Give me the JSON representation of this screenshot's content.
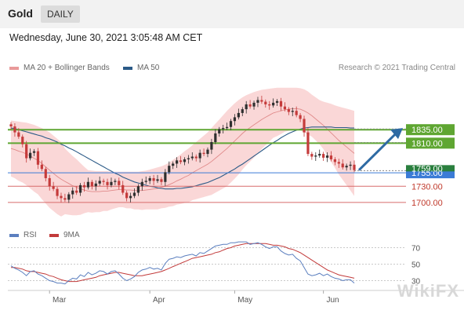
{
  "header": {
    "title": "Gold",
    "timeframe": "DAILY"
  },
  "timestamp": "Wednesday, June 30, 2021 3:05:48 AM CET",
  "credit": "Research © 2021 Trading Central",
  "watermark": "WikiFX",
  "colors": {
    "bollinger_band": "#f8c9c9",
    "ma20": "#e08a8a",
    "ma50": "#2b5a87",
    "resistance": "#5fa632",
    "support": "#d86b6b",
    "current": "#3b7bd6",
    "candle_up": "#2f2f2f",
    "candle_down": "#c53b3b",
    "rsi": "#5b7fbf",
    "rsi_ma": "#c23a3a",
    "arrow": "#2e6aa3"
  },
  "chart_data": [
    {
      "type": "candlestick",
      "legend": [
        "MA 20 + Bollinger Bands",
        "MA 50"
      ],
      "x_tick_labels": [
        "Mar",
        "Apr",
        "May",
        "Jun"
      ],
      "price_levels": [
        {
          "label": "1835.00",
          "value": 1835,
          "kind": "resistance"
        },
        {
          "label": "1810.00",
          "value": 1810,
          "kind": "resistance"
        },
        {
          "label": "1755.00",
          "value": 1755,
          "kind": "pivot"
        },
        {
          "label": "1730.00",
          "value": 1730,
          "kind": "support"
        },
        {
          "label": "1700.00",
          "value": 1700,
          "kind": "support"
        }
      ],
      "current_price_label": "1759.00",
      "current_price": 1759,
      "ylim": [
        1675,
        1930
      ],
      "close": [
        1841,
        1830,
        1822,
        1808,
        1782,
        1792,
        1795,
        1770,
        1762,
        1745,
        1730,
        1725,
        1712,
        1708,
        1705,
        1715,
        1722,
        1718,
        1732,
        1728,
        1738,
        1730,
        1735,
        1740,
        1738,
        1732,
        1738,
        1740,
        1732,
        1718,
        1708,
        1712,
        1718,
        1730,
        1738,
        1740,
        1745,
        1740,
        1743,
        1738,
        1756,
        1768,
        1772,
        1778,
        1775,
        1780,
        1782,
        1785,
        1782,
        1792,
        1790,
        1798,
        1812,
        1828,
        1836,
        1838,
        1840,
        1851,
        1858,
        1866,
        1873,
        1882,
        1878,
        1885,
        1890,
        1887,
        1882,
        1880,
        1885,
        1888,
        1878,
        1873,
        1868,
        1870,
        1862,
        1855,
        1830,
        1790,
        1785,
        1787,
        1790,
        1783,
        1787,
        1780,
        1775,
        1772,
        1765,
        1768,
        1770,
        1760
      ],
      "ma20": [
        1800,
        1798,
        1795,
        1793,
        1790,
        1786,
        1782,
        1778,
        1772,
        1766,
        1760,
        1754,
        1748,
        1743,
        1739,
        1735,
        1731,
        1728,
        1725,
        1723,
        1721,
        1720,
        1720,
        1720,
        1721,
        1721,
        1722,
        1723,
        1724,
        1724,
        1723,
        1723,
        1722,
        1722,
        1722,
        1723,
        1724,
        1725,
        1726,
        1728,
        1730,
        1733,
        1736,
        1740,
        1743,
        1747,
        1750,
        1755,
        1759,
        1763,
        1767,
        1771,
        1776,
        1782,
        1788,
        1794,
        1800,
        1807,
        1814,
        1821,
        1828,
        1834,
        1839,
        1844,
        1849,
        1854,
        1858,
        1862,
        1866,
        1868,
        1870,
        1872,
        1873,
        1874,
        1874,
        1873,
        1870,
        1866,
        1861,
        1855,
        1849,
        1843,
        1836,
        1829,
        1822,
        1815,
        1809,
        1803,
        1797,
        1791
      ],
      "bb_upper": [
        1852,
        1851,
        1850,
        1849,
        1848,
        1846,
        1844,
        1841,
        1838,
        1834,
        1830,
        1824,
        1818,
        1812,
        1800,
        1793,
        1786,
        1780,
        1773,
        1766,
        1760,
        1759,
        1758,
        1758,
        1758,
        1758,
        1757,
        1757,
        1757,
        1757,
        1757,
        1757,
        1757,
        1757,
        1758,
        1759,
        1761,
        1763,
        1765,
        1767,
        1770,
        1774,
        1779,
        1784,
        1789,
        1795,
        1800,
        1806,
        1812,
        1818,
        1824,
        1830,
        1838,
        1846,
        1854,
        1862,
        1870,
        1877,
        1884,
        1890,
        1895,
        1899,
        1902,
        1905,
        1907,
        1909,
        1910,
        1911,
        1912,
        1913,
        1913,
        1913,
        1913,
        1913,
        1913,
        1912,
        1910,
        1906,
        1900,
        1895,
        1890,
        1887,
        1885,
        1883,
        1880,
        1878,
        1876,
        1874,
        1872,
        1870
      ],
      "bb_lower": [
        1748,
        1745,
        1740,
        1737,
        1732,
        1726,
        1720,
        1715,
        1706,
        1698,
        1690,
        1684,
        1678,
        1674,
        1678,
        1677,
        1676,
        1676,
        1677,
        1680,
        1682,
        1681,
        1682,
        1682,
        1684,
        1684,
        1687,
        1689,
        1691,
        1691,
        1689,
        1689,
        1687,
        1687,
        1686,
        1687,
        1687,
        1687,
        1687,
        1689,
        1690,
        1692,
        1693,
        1696,
        1697,
        1699,
        1700,
        1704,
        1706,
        1708,
        1710,
        1712,
        1714,
        1718,
        1722,
        1726,
        1730,
        1737,
        1744,
        1752,
        1761,
        1769,
        1776,
        1783,
        1791,
        1799,
        1806,
        1813,
        1820,
        1823,
        1827,
        1831,
        1833,
        1835,
        1835,
        1834,
        1830,
        1826,
        1822,
        1815,
        1808,
        1799,
        1787,
        1775,
        1764,
        1752,
        1742,
        1732,
        1722,
        1712
      ],
      "ma50": [
        1838,
        1837,
        1835,
        1833,
        1831,
        1829,
        1827,
        1825,
        1823,
        1820,
        1818,
        1815,
        1812,
        1808,
        1805,
        1801,
        1798,
        1794,
        1790,
        1786,
        1782,
        1778,
        1774,
        1770,
        1766,
        1762,
        1758,
        1754,
        1751,
        1747,
        1744,
        1741,
        1738,
        1736,
        1734,
        1732,
        1730,
        1729,
        1727,
        1726,
        1725,
        1725,
        1725,
        1726,
        1726,
        1727,
        1728,
        1729,
        1731,
        1733,
        1735,
        1737,
        1740,
        1743,
        1746,
        1750,
        1754,
        1758,
        1762,
        1767,
        1771,
        1776,
        1781,
        1786,
        1791,
        1796,
        1801,
        1806,
        1811,
        1815,
        1820,
        1824,
        1828,
        1831,
        1834,
        1836,
        1838,
        1839,
        1840,
        1840,
        1840,
        1840,
        1840,
        1840,
        1839,
        1839,
        1839,
        1839,
        1838,
        1838
      ]
    },
    {
      "type": "line",
      "legend": [
        "RSI",
        "9MA"
      ],
      "y_tick_labels": [
        "70",
        "50",
        "30"
      ],
      "y_ticks": [
        70,
        50,
        30
      ],
      "ylim": [
        20,
        80
      ],
      "rsi": [
        48,
        45,
        43,
        40,
        36,
        41,
        42,
        38,
        36,
        33,
        30,
        29,
        27,
        27,
        26,
        30,
        33,
        32,
        37,
        35,
        40,
        37,
        39,
        42,
        41,
        38,
        41,
        42,
        38,
        33,
        30,
        32,
        35,
        40,
        43,
        44,
        46,
        44,
        45,
        43,
        51,
        56,
        57,
        59,
        58,
        60,
        61,
        62,
        60,
        64,
        63,
        66,
        69,
        72,
        73,
        74,
        74,
        76,
        76,
        77,
        77,
        77,
        74,
        75,
        76,
        74,
        71,
        69,
        71,
        71,
        66,
        63,
        61,
        62,
        57,
        54,
        46,
        38,
        36,
        37,
        39,
        36,
        38,
        35,
        33,
        32,
        30,
        31,
        31,
        27
      ],
      "rsi_ma": [
        46,
        46,
        45,
        44,
        42,
        41,
        41,
        40,
        39,
        38,
        36,
        35,
        33,
        31,
        30,
        29,
        29,
        29,
        30,
        31,
        32,
        33,
        34,
        36,
        37,
        38,
        39,
        40,
        40,
        39,
        38,
        37,
        36,
        36,
        36,
        37,
        38,
        39,
        40,
        41,
        43,
        45,
        47,
        49,
        51,
        53,
        55,
        57,
        58,
        59,
        60,
        61,
        62,
        64,
        65,
        67,
        69,
        70,
        72,
        73,
        74,
        75,
        75,
        75,
        75,
        75,
        75,
        74,
        73,
        73,
        72,
        71,
        69,
        68,
        66,
        64,
        61,
        58,
        55,
        52,
        49,
        46,
        43,
        41,
        39,
        37,
        36,
        35,
        34,
        33
      ]
    }
  ]
}
